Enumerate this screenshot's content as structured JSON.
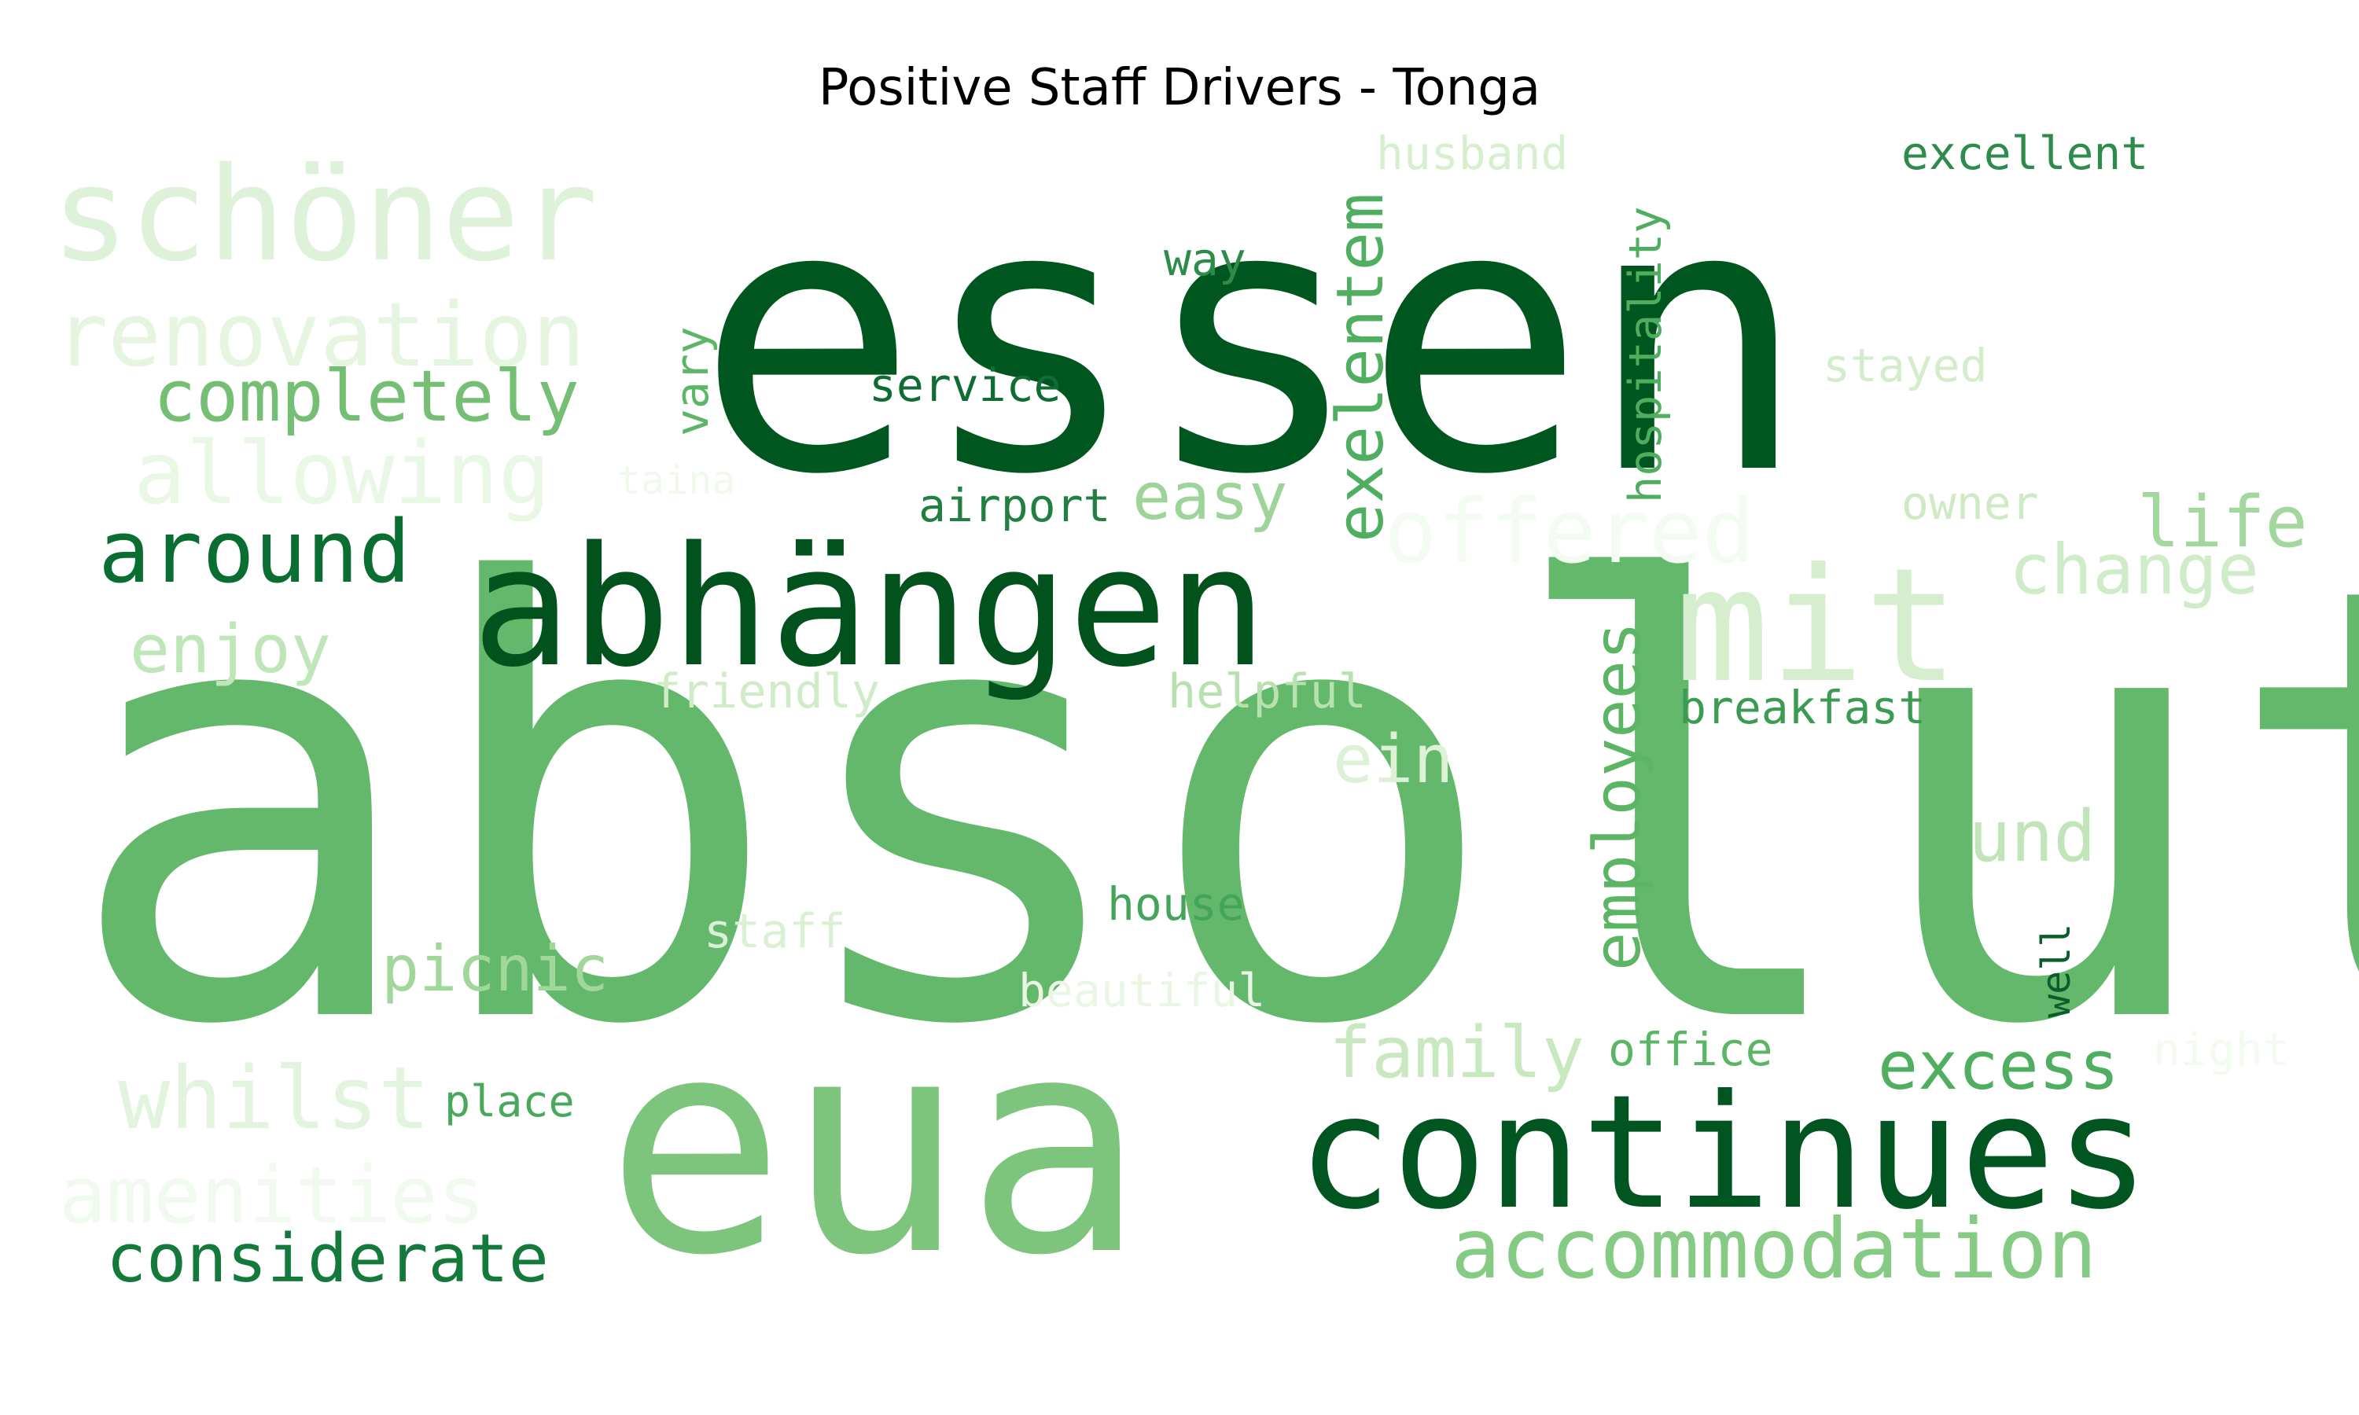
{
  "title": "Positive Staff Drivers - Tonga",
  "chart_data": {
    "type": "wordcloud",
    "title": "Positive Staff Drivers - Tonga",
    "colormap": "Greens",
    "words": [
      {
        "text": "absolut",
        "color": "#63b86b"
      },
      {
        "text": "essen",
        "color": "#00561f"
      },
      {
        "text": "eua",
        "color": "#7dc57c"
      },
      {
        "text": "continues",
        "color": "#005521"
      },
      {
        "text": "abhängen",
        "color": "#01521c"
      },
      {
        "text": "mit",
        "color": "#d5eece"
      },
      {
        "text": "schöner",
        "color": "#def2d9"
      },
      {
        "text": "renovation",
        "color": "#e5f5e0"
      },
      {
        "text": "completely",
        "color": "#75bf75"
      },
      {
        "text": "allowing",
        "color": "#e9f7e5"
      },
      {
        "text": "around",
        "color": "#0a6d31"
      },
      {
        "text": "enjoy",
        "color": "#bfe6b8"
      },
      {
        "text": "picnic",
        "color": "#a2d79b"
      },
      {
        "text": "whilst",
        "color": "#e3f4de"
      },
      {
        "text": "amenities",
        "color": "#f1faee"
      },
      {
        "text": "considerate",
        "color": "#137a3b"
      },
      {
        "text": "place",
        "color": "#48a95d"
      },
      {
        "text": "staff",
        "color": "#d9f0d3"
      },
      {
        "text": "beautiful",
        "color": "#e9f6e4"
      },
      {
        "text": "house",
        "color": "#43a45a"
      },
      {
        "text": "friendly",
        "color": "#cfebc8"
      },
      {
        "text": "helpful",
        "color": "#b7e1af"
      },
      {
        "text": "airport",
        "color": "#217f41"
      },
      {
        "text": "easy",
        "color": "#9ed49a"
      },
      {
        "text": "service",
        "color": "#0f6d34"
      },
      {
        "text": "way",
        "color": "#2e8c4b"
      },
      {
        "text": "vary",
        "color": "#5db567"
      },
      {
        "text": "taina",
        "color": "#f1f9ee"
      },
      {
        "text": "exelentem",
        "color": "#4fae60"
      },
      {
        "text": "husband",
        "color": "#d6efcf"
      },
      {
        "text": "hospitality",
        "color": "#4ead5f"
      },
      {
        "text": "offered",
        "color": "#f4fbf2"
      },
      {
        "text": "employees",
        "color": "#5bb564"
      },
      {
        "text": "ein",
        "color": "#ddf1d7"
      },
      {
        "text": "family",
        "color": "#c8e8c0"
      },
      {
        "text": "office",
        "color": "#5ab564"
      },
      {
        "text": "excellent",
        "color": "#2d8b4b"
      },
      {
        "text": "stayed",
        "color": "#d3edcb"
      },
      {
        "text": "owner",
        "color": "#cdeac5"
      },
      {
        "text": "life",
        "color": "#a3d79e"
      },
      {
        "text": "change",
        "color": "#cfecc8"
      },
      {
        "text": "breakfast",
        "color": "#3b9b53"
      },
      {
        "text": "und",
        "color": "#c1e5b9"
      },
      {
        "text": "well",
        "color": "#0b5e2a"
      },
      {
        "text": "excess",
        "color": "#4fae60"
      },
      {
        "text": "night",
        "color": "#f3faf0"
      },
      {
        "text": "accommodation",
        "color": "#86cb83"
      }
    ]
  }
}
